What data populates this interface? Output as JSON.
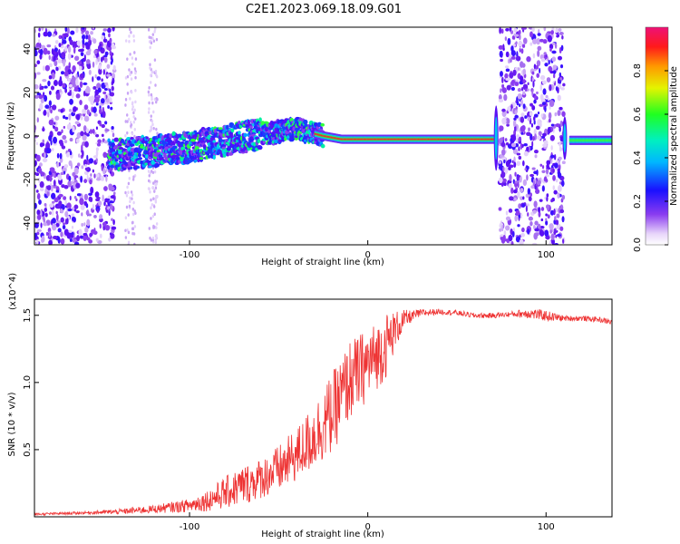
{
  "title": "C2E1.2023.069.18.09.G01",
  "colors": {
    "snr_line": "#ee3333",
    "background_dots": "#9b5cf0",
    "signal_core": "#ff2020"
  },
  "colorbar": {
    "label": "Normalized spectral amplitude",
    "ticks": [
      "0.0",
      "0.2",
      "0.4",
      "0.6",
      "0.8"
    ],
    "tick_values": [
      0.0,
      0.2,
      0.4,
      0.6,
      0.8
    ],
    "range": [
      0,
      1
    ],
    "colormap": "rainbow"
  },
  "chart_data": [
    {
      "type": "heatmap",
      "title": "",
      "xlabel": "Height of straight line (km)",
      "ylabel": "Frequency (Hz)",
      "xlim": [
        -187,
        137
      ],
      "ylim": [
        -50,
        50
      ],
      "xticks": [
        -100,
        0,
        100
      ],
      "yticks": [
        -40,
        -20,
        0,
        20,
        40
      ],
      "noise_regions_km": [
        [
          -187,
          -142
        ],
        [
          74,
          110
        ]
      ],
      "doppler_trace": {
        "x": [
          -145,
          -120,
          -100,
          -80,
          -60,
          -40,
          -25,
          -15,
          0,
          20,
          50,
          72
        ],
        "y": [
          -9,
          -7,
          -5,
          -2,
          1,
          3,
          0,
          -1.5,
          -1.5,
          -1.5,
          -1.5,
          -1.5
        ]
      },
      "post_gap_trace": {
        "x": [
          113,
          137
        ],
        "y": [
          -2,
          -2
        ]
      }
    },
    {
      "type": "line",
      "title": "",
      "xlabel": "Height of straight line (km)",
      "ylabel": "SNR (10 * v/v)",
      "y_multiplier": "(x10^4)",
      "xlim": [
        -187,
        137
      ],
      "ylim": [
        0,
        1.62
      ],
      "xticks": [
        -100,
        0,
        100
      ],
      "yticks": [
        "0.5",
        "1.0",
        "1.5"
      ],
      "ytick_values": [
        0.5,
        1.0,
        1.5
      ],
      "series": [
        {
          "x": [
            -187,
            -160,
            -140,
            -120,
            -100,
            -90,
            -80,
            -70,
            -60,
            -50,
            -40,
            -30,
            -20,
            -15,
            -10,
            -5,
            0,
            5,
            10,
            15,
            20,
            25,
            30,
            40,
            50,
            60,
            70,
            80,
            90,
            100,
            110,
            120,
            130,
            137
          ],
          "y": [
            0.02,
            0.03,
            0.04,
            0.06,
            0.09,
            0.13,
            0.19,
            0.25,
            0.3,
            0.37,
            0.48,
            0.63,
            0.8,
            0.92,
            1.05,
            1.1,
            1.17,
            1.22,
            1.3,
            1.4,
            1.47,
            1.5,
            1.52,
            1.53,
            1.52,
            1.5,
            1.5,
            1.51,
            1.52,
            1.5,
            1.48,
            1.48,
            1.47,
            1.45
          ],
          "noise_amplitude": [
            0.01,
            0.01,
            0.02,
            0.03,
            0.05,
            0.08,
            0.12,
            0.15,
            0.15,
            0.18,
            0.2,
            0.25,
            0.3,
            0.3,
            0.3,
            0.28,
            0.28,
            0.25,
            0.25,
            0.15,
            0.08,
            0.04,
            0.03,
            0.02,
            0.02,
            0.02,
            0.02,
            0.02,
            0.04,
            0.04,
            0.02,
            0.02,
            0.02,
            0.02
          ]
        }
      ]
    }
  ]
}
